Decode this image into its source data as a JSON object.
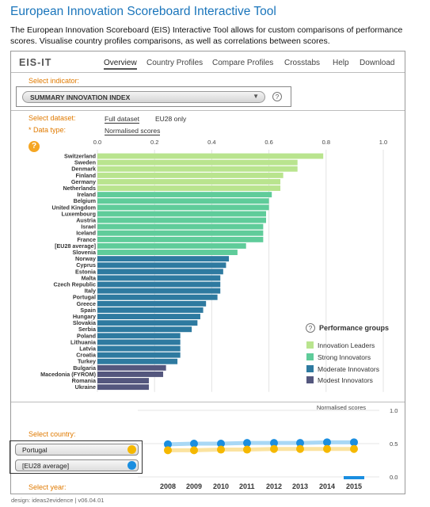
{
  "page": {
    "title": "European Innovation Scoreboard Interactive Tool",
    "intro": "The European Innovation Scoreboard (EIS) Interactive Tool allows for custom comparisons of performance scores. Visualise country profiles comparisons, as well as correlations between scores.",
    "footer": "design: ideas2evidence  |  v06.04.01"
  },
  "app": {
    "logo": "EIS-IT",
    "nav": [
      "Overview",
      "Country Profiles",
      "Compare Profiles",
      "Crosstabs",
      "Help",
      "Download"
    ],
    "active_nav": "Overview"
  },
  "indicator": {
    "label": "Select indicator:",
    "value": "SUMMARY INNOVATION INDEX",
    "help": "?"
  },
  "dataset": {
    "label": "Select dataset:",
    "options": [
      "Full dataset",
      "EU28 only"
    ],
    "selected": "Full dataset"
  },
  "datatype": {
    "label": "* Data type:",
    "value": "Normalised scores"
  },
  "chart_help": "?",
  "chart_data": {
    "type": "bar",
    "orientation": "horizontal",
    "xlim": [
      0,
      1
    ],
    "xticks": [
      "0.0",
      "0.2",
      "0.4",
      "0.6",
      "0.8",
      "1.0"
    ],
    "categories": [
      "Switzerland",
      "Sweden",
      "Denmark",
      "Finland",
      "Germany",
      "Netherlands",
      "Ireland",
      "Belgium",
      "United Kingdom",
      "Luxembourg",
      "Austria",
      "Israel",
      "Iceland",
      "France",
      "[EU28 average]",
      "Slovenia",
      "Norway",
      "Cyprus",
      "Estonia",
      "Malta",
      "Czech Republic",
      "Italy",
      "Portugal",
      "Greece",
      "Spain",
      "Hungary",
      "Slovakia",
      "Serbia",
      "Poland",
      "Lithuania",
      "Latvia",
      "Croatia",
      "Turkey",
      "Bulgaria",
      "Macedonia (FYROM)",
      "Romania",
      "Ukraine"
    ],
    "values": [
      0.79,
      0.7,
      0.7,
      0.65,
      0.64,
      0.64,
      0.61,
      0.6,
      0.6,
      0.59,
      0.59,
      0.58,
      0.58,
      0.58,
      0.52,
      0.49,
      0.46,
      0.45,
      0.44,
      0.43,
      0.43,
      0.43,
      0.42,
      0.38,
      0.37,
      0.36,
      0.35,
      0.33,
      0.29,
      0.29,
      0.29,
      0.29,
      0.28,
      0.24,
      0.23,
      0.18,
      0.18
    ],
    "groups": [
      "leader",
      "leader",
      "leader",
      "leader",
      "leader",
      "leader",
      "strong",
      "strong",
      "strong",
      "strong",
      "strong",
      "strong",
      "strong",
      "strong",
      "strong",
      "strong",
      "moderate",
      "moderate",
      "moderate",
      "moderate",
      "moderate",
      "moderate",
      "moderate",
      "moderate",
      "moderate",
      "moderate",
      "moderate",
      "moderate",
      "moderate",
      "moderate",
      "moderate",
      "moderate",
      "moderate",
      "modest",
      "modest",
      "modest",
      "modest"
    ],
    "group_colors": {
      "leader": "#b9e48e",
      "strong": "#5fcc9a",
      "moderate": "#2e7aa0",
      "modest": "#54577e"
    },
    "grid": true
  },
  "legend": {
    "title": "Performance groups",
    "help": "?",
    "items": [
      {
        "label": "Innovation Leaders",
        "color": "#b9e48e"
      },
      {
        "label": "Strong Innovators",
        "color": "#5fcc9a"
      },
      {
        "label": "Moderate Innovators",
        "color": "#2e7aa0"
      },
      {
        "label": "Modest Innovators",
        "color": "#54577e"
      }
    ]
  },
  "trend": {
    "title": "Normalised scores",
    "yticks": [
      "1.0",
      "0.5",
      "0.0"
    ],
    "years": [
      "2008",
      "2009",
      "2010",
      "2011",
      "2012",
      "2013",
      "2014",
      "2015"
    ],
    "selected_year": "2015",
    "series": [
      {
        "name": "[EU28 average]",
        "color": "#1a8ee0",
        "values": [
          0.49,
          0.5,
          0.5,
          0.51,
          0.51,
          0.51,
          0.52,
          0.52
        ]
      },
      {
        "name": "Portugal",
        "color": "#f5b800",
        "values": [
          0.4,
          0.4,
          0.41,
          0.41,
          0.42,
          0.42,
          0.42,
          0.42
        ]
      }
    ]
  },
  "country": {
    "label": "Select country:",
    "items": [
      {
        "name": "Portugal",
        "color": "#f5b800"
      },
      {
        "name": "[EU28 average]",
        "color": "#1a8ee0"
      }
    ]
  },
  "year_label": "Select year:"
}
